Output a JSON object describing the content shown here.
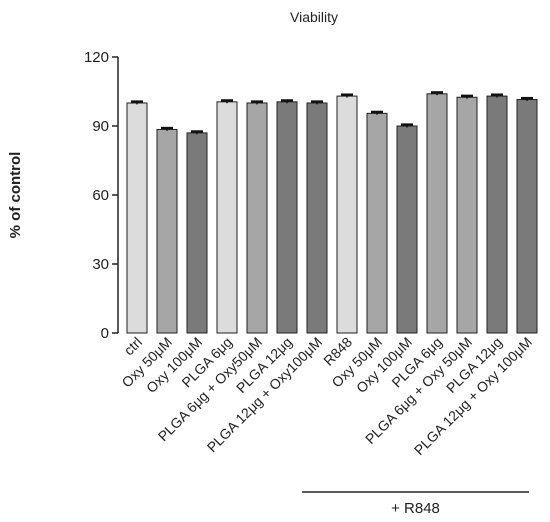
{
  "chart_data": {
    "type": "bar",
    "title": "Viability",
    "ylabel": "% of control",
    "xlabel": "",
    "ylim": [
      0,
      120
    ],
    "yticks": [
      0,
      30,
      60,
      90,
      120
    ],
    "categories": [
      "ctrl",
      "Oxy 50μM",
      "Oxy 100μM",
      "PLGA 6μg",
      "PLGA 6μg + Oxy50μM",
      "PLGA 12μg",
      "PLGA 12μg + Oxy100μM",
      "R848",
      "Oxy 50μM",
      "Oxy 100μM",
      "PLGA 6μg",
      "PLGA 6μg + Oxy 50μM",
      "PLGA 12μg",
      "PLGA 12μg + Oxy 100μM"
    ],
    "values": [
      100,
      88.5,
      87,
      100.5,
      100,
      100.5,
      100,
      103,
      95.5,
      90,
      104,
      102.5,
      103,
      101.5
    ],
    "errors": [
      0.6,
      0.6,
      0.6,
      0.6,
      0.6,
      0.6,
      0.6,
      0.6,
      0.6,
      0.6,
      0.6,
      0.6,
      0.6,
      0.6
    ],
    "bar_colors": [
      "#dcdcdc",
      "#a6a6a6",
      "#7a7a7a",
      "#dcdcdc",
      "#a6a6a6",
      "#7a7a7a",
      "#7a7a7a",
      "#dcdcdc",
      "#a6a6a6",
      "#7a7a7a",
      "#a6a6a6",
      "#a6a6a6",
      "#7a7a7a",
      "#7a7a7a"
    ],
    "group_bracket": {
      "label": "+ R848",
      "from_index": 7,
      "to_index": 13
    },
    "grid": false
  }
}
